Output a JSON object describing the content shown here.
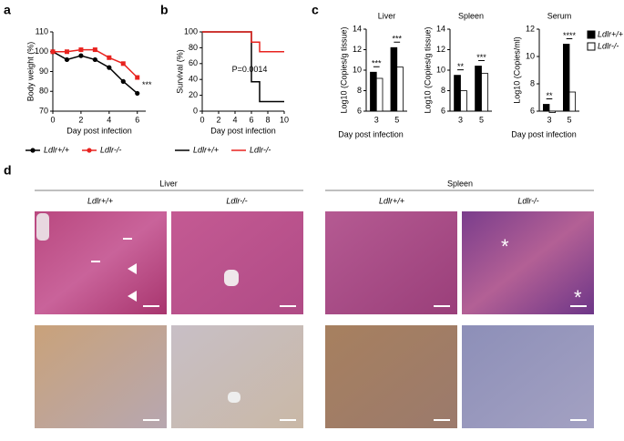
{
  "panel_labels": [
    "a",
    "b",
    "c",
    "d"
  ],
  "chart_data": [
    {
      "type": "line",
      "ylabel": "Body weight (%)",
      "xlabel": "Day post infection",
      "x": [
        0,
        1,
        2,
        3,
        4,
        5,
        6
      ],
      "xlim": [
        0,
        6.6
      ],
      "xticks": [
        0,
        2,
        4,
        6
      ],
      "ylim": [
        70,
        110
      ],
      "yticks": [
        70,
        80,
        90,
        100,
        110
      ],
      "series": [
        {
          "name": "Ldlr+/+",
          "color": "#000000",
          "values": [
            100,
            96,
            98,
            96,
            92,
            85,
            79
          ]
        },
        {
          "name": "Ldlr-/-",
          "color": "#e8231f",
          "values": [
            100,
            100,
            101,
            101,
            97,
            94,
            87
          ]
        }
      ],
      "annotation": "***",
      "legend": "bottom"
    },
    {
      "type": "step",
      "ylabel": "Survival (%)",
      "xlabel": "Day post infection",
      "x": [
        0,
        6,
        7,
        10
      ],
      "xlim": [
        0,
        10
      ],
      "xticks": [
        0,
        2,
        4,
        6,
        8,
        10
      ],
      "ylim": [
        0,
        100
      ],
      "yticks": [
        0,
        20,
        40,
        60,
        80,
        100
      ],
      "series": [
        {
          "name": "Ldlr+/+",
          "color": "#000000",
          "values": [
            100,
            37,
            12,
            12
          ]
        },
        {
          "name": "Ldlr-/-",
          "color": "#e8231f",
          "values": [
            100,
            87,
            75,
            75
          ]
        }
      ],
      "annotation": "P=0.0014",
      "legend": "bottom"
    },
    {
      "type": "bar",
      "title": "Liver",
      "ylabel": "Log10 (Copies/g tissue)",
      "xlabel": "Day post infection",
      "categories": [
        "3",
        "5"
      ],
      "ylim": [
        6,
        14
      ],
      "yticks": [
        6,
        8,
        10,
        12,
        14
      ],
      "series": [
        {
          "name": "Ldlr+/+",
          "color": "#000000",
          "values": [
            9.8,
            12.2
          ]
        },
        {
          "name": "Ldlr-/-",
          "color": "#ffffff",
          "values": [
            9.2,
            10.3
          ]
        }
      ],
      "annotations": [
        "***",
        "***"
      ]
    },
    {
      "type": "bar",
      "title": "Spleen",
      "ylabel": "Log10 (Copies/g tissue)",
      "categories": [
        "3",
        "5"
      ],
      "ylim": [
        6,
        14
      ],
      "yticks": [
        6,
        8,
        10,
        12,
        14
      ],
      "series": [
        {
          "name": "Ldlr+/+",
          "color": "#000000",
          "values": [
            9.5,
            10.4
          ]
        },
        {
          "name": "Ldlr-/-",
          "color": "#ffffff",
          "values": [
            8.0,
            9.7
          ]
        }
      ],
      "annotations": [
        "**",
        "***"
      ]
    },
    {
      "type": "bar",
      "title": "Serum",
      "ylabel": "Log10 (Copies/ml)",
      "xlabel": "Day post infection",
      "categories": [
        "3",
        "5"
      ],
      "ylim": [
        6,
        12
      ],
      "yticks": [
        6,
        8,
        10,
        12
      ],
      "series": [
        {
          "name": "Ldlr+/+",
          "color": "#000000",
          "values": [
            6.5,
            10.9
          ]
        },
        {
          "name": "Ldlr-/-",
          "color": "#ffffff",
          "values": [
            5.9,
            7.4
          ]
        }
      ],
      "annotations": [
        "**",
        "****"
      ],
      "legend": "right"
    }
  ],
  "histology": {
    "tissues": [
      "Liver",
      "Spleen"
    ],
    "genotypes": [
      "Ldlr+/+",
      "Ldlr-/-",
      "Ldlr+/+",
      "Ldlr-/-"
    ]
  }
}
